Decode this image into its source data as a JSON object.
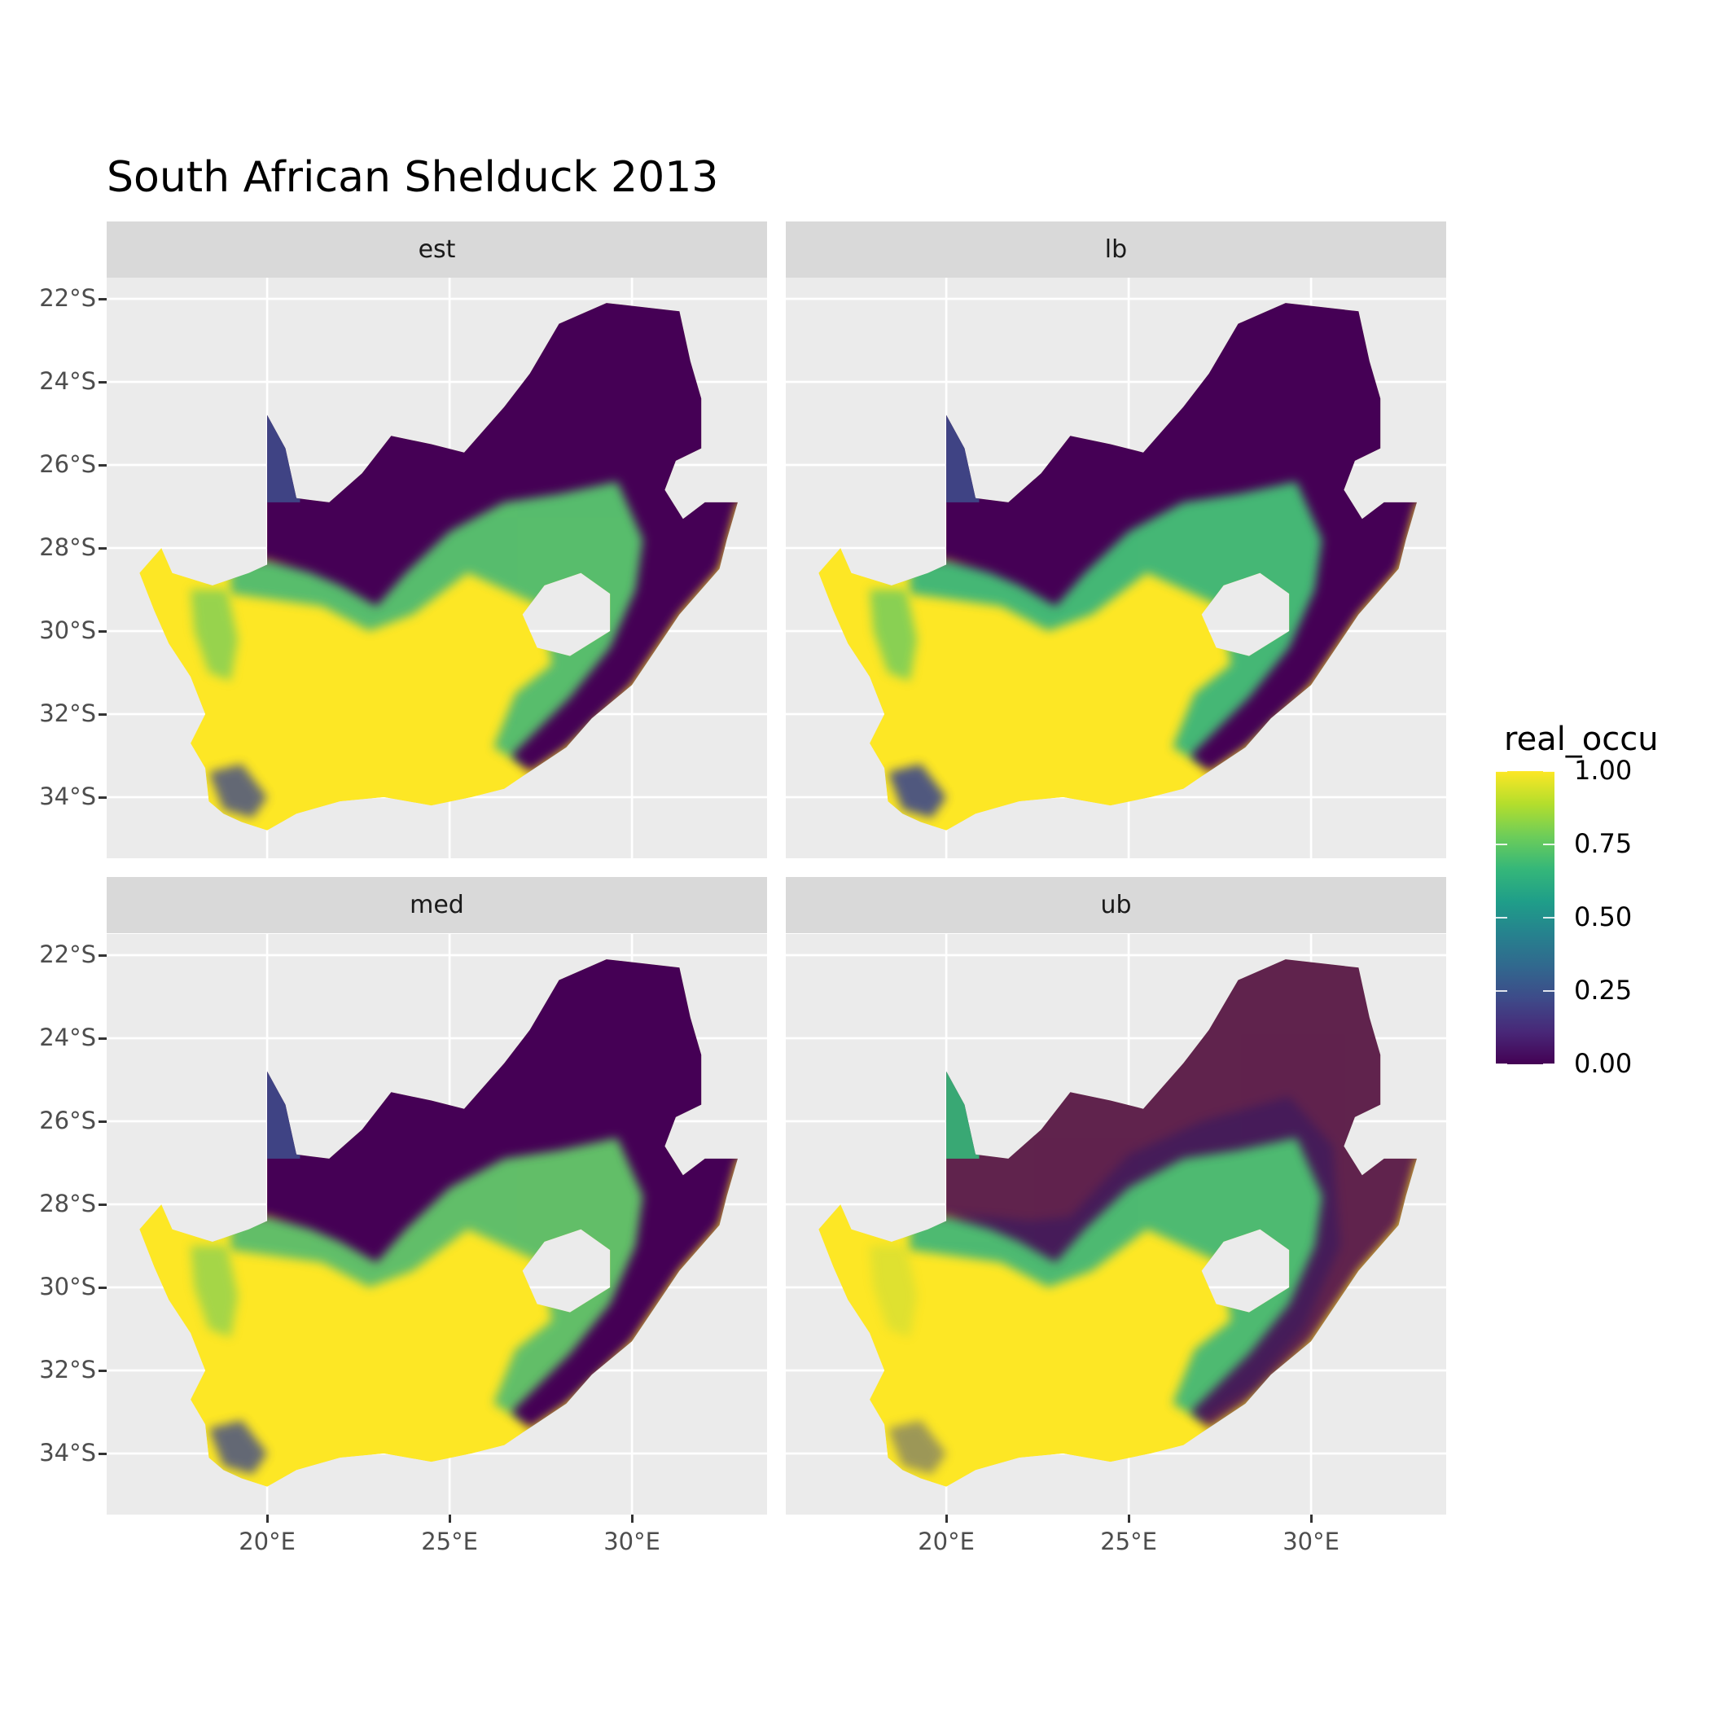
{
  "chart_data": {
    "type": "heatmap",
    "title": "South African Shelduck 2013",
    "facets": [
      "est",
      "lb",
      "med",
      "ub"
    ],
    "x_ticks": [
      "20°E",
      "25°E",
      "30°E"
    ],
    "x_tick_values": [
      20,
      25,
      30
    ],
    "y_ticks": [
      "22°S",
      "24°S",
      "26°S",
      "28°S",
      "30°S",
      "32°S",
      "34°S"
    ],
    "y_tick_values": [
      -22,
      -24,
      -26,
      -28,
      -30,
      -32,
      -34
    ],
    "legend": {
      "title": "real_occu",
      "labels": [
        "1.00",
        "0.75",
        "0.50",
        "0.25",
        "0.00"
      ],
      "values": [
        1.0,
        0.75,
        0.5,
        0.25,
        0.0
      ],
      "colormap": "viridis",
      "low_color": "#440154",
      "high_color": "#FDE725"
    },
    "panel_background": "#EBEBEB",
    "strip_background": "#D9D9D9",
    "grid": true,
    "legend_position": "right"
  }
}
